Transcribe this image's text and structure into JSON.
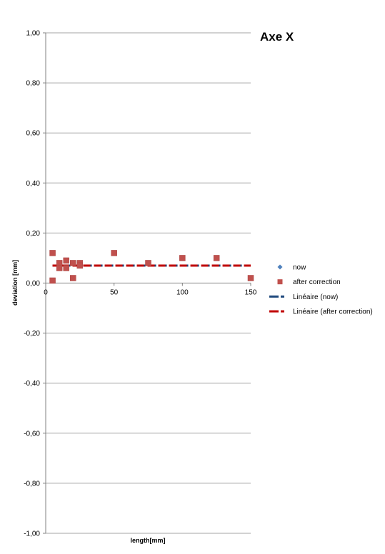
{
  "chart_data": {
    "type": "scatter",
    "title": "Axe X",
    "xlabel": "length[mm]",
    "ylabel": "deviation [mm]",
    "xlim": [
      0,
      150
    ],
    "ylim": [
      -1.0,
      1.0
    ],
    "x_ticks": [
      0,
      50,
      100,
      150
    ],
    "x_tick_labels": [
      "0",
      "50",
      "100",
      "150"
    ],
    "y_ticks": [
      1.0,
      0.8,
      0.6,
      0.4,
      0.2,
      0.0,
      -0.2,
      -0.4,
      -0.6,
      -0.8,
      -1.0
    ],
    "y_tick_labels": [
      "1,00",
      "0,80",
      "0,60",
      "0,40",
      "0,20",
      "0,00",
      "-0,20",
      "-0,40",
      "-0,60",
      "-0,80",
      "-1,00"
    ],
    "grid": "horizontal",
    "legend_position": "right",
    "series": [
      {
        "name": "now",
        "marker": "diamond",
        "color": "#4f81bd",
        "x": [
          5,
          5,
          10,
          10,
          15,
          15,
          20,
          20,
          25,
          25,
          50,
          75,
          100,
          125,
          150
        ],
        "y": [
          0.12,
          0.01,
          0.08,
          0.06,
          0.09,
          0.06,
          0.08,
          0.02,
          0.08,
          0.07,
          0.12,
          0.08,
          0.1,
          0.1,
          0.02
        ]
      },
      {
        "name": "after correction",
        "marker": "square",
        "color": "#c0504d",
        "x": [
          5,
          5,
          10,
          10,
          15,
          15,
          20,
          20,
          25,
          25,
          50,
          75,
          100,
          125,
          150
        ],
        "y": [
          0.12,
          0.01,
          0.08,
          0.06,
          0.09,
          0.06,
          0.08,
          0.02,
          0.08,
          0.07,
          0.12,
          0.08,
          0.1,
          0.1,
          0.02
        ]
      }
    ],
    "trendlines": [
      {
        "name": "Linéaire (now)",
        "color": "#1f497d",
        "style": "dashed",
        "x": [
          5,
          150
        ],
        "y": [
          0.07,
          0.07
        ]
      },
      {
        "name": "Linéaire (after correction)",
        "color": "#c00000",
        "style": "dashed",
        "x": [
          5,
          150
        ],
        "y": [
          0.07,
          0.07
        ]
      }
    ],
    "legend": [
      {
        "label": "now",
        "kind": "diamond",
        "color": "#4f81bd"
      },
      {
        "label": "after correction",
        "kind": "square",
        "color": "#c0504d"
      },
      {
        "label": "Linéaire (now)",
        "kind": "dash",
        "color": "#1f497d"
      },
      {
        "label": "Linéaire (after correction)",
        "kind": "dash",
        "color": "#c00000"
      }
    ]
  }
}
